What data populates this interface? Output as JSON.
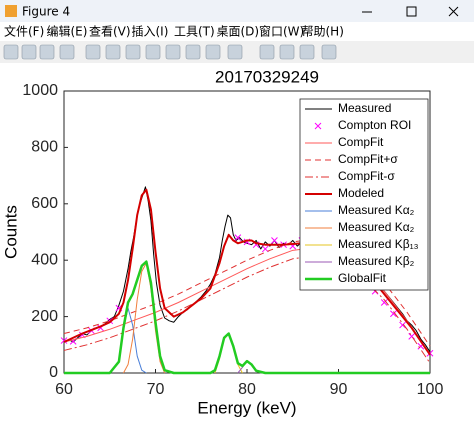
{
  "window_title": "Figure 4",
  "menu": [
    "文件(F)",
    "编辑(E)",
    "查看(V)",
    "插入(I)",
    "工具(T)",
    "桌面(D)",
    "窗口(W)",
    "帮助(H)"
  ],
  "chart_data": {
    "type": "line",
    "title": "20170329249",
    "x_label": "Energy (keV)",
    "y_label": "Counts",
    "xlim": [
      60,
      100
    ],
    "xticks": [
      60,
      70,
      80,
      90,
      100
    ],
    "ylim": [
      0,
      1000
    ],
    "yticks": [
      0,
      200,
      400,
      600,
      800,
      1000
    ],
    "legend": "upper right",
    "series": [
      {
        "name": "Measured",
        "color": "#000000",
        "style": "line",
        "width": 1,
        "x": [
          60,
          60.5,
          61,
          61.5,
          62,
          62.5,
          63,
          63.5,
          64,
          64.5,
          65,
          65.5,
          66,
          66.5,
          67,
          67.3,
          67.6,
          68,
          68.3,
          68.6,
          68.9,
          69.2,
          69.5,
          69.8,
          70.1,
          70.5,
          71,
          71.5,
          72,
          72.5,
          73,
          73.5,
          74,
          74.5,
          75,
          75.5,
          76,
          76.5,
          77,
          77.3,
          77.6,
          77.9,
          78.2,
          78.5,
          78.8,
          79.2,
          79.6,
          80,
          80.5,
          81,
          81.5,
          82,
          82.5,
          83,
          83.5,
          84,
          84.5,
          85,
          85.5,
          86,
          86.5,
          87,
          87.5,
          88,
          88.5,
          89,
          89.5,
          90,
          90.5,
          91,
          91.5,
          92,
          92.5,
          93,
          93.5,
          94,
          94.5,
          95,
          95.5,
          96,
          96.5,
          97,
          97.5,
          98,
          98.5,
          99,
          99.5,
          100
        ],
        "values": [
          112,
          118,
          110,
          125,
          140,
          135,
          150,
          160,
          165,
          175,
          190,
          200,
          240,
          290,
          370,
          430,
          480,
          560,
          600,
          630,
          660,
          610,
          540,
          420,
          320,
          240,
          195,
          185,
          180,
          200,
          215,
          225,
          240,
          255,
          270,
          290,
          315,
          350,
          410,
          470,
          520,
          560,
          550,
          490,
          470,
          480,
          465,
          460,
          455,
          470,
          440,
          465,
          450,
          470,
          445,
          460,
          455,
          470,
          450,
          465,
          445,
          470,
          455,
          460,
          440,
          450,
          430,
          420,
          430,
          400,
          410,
          380,
          390,
          360,
          345,
          320,
          310,
          290,
          270,
          250,
          230,
          210,
          185,
          170,
          150,
          120,
          100,
          75
        ]
      },
      {
        "name": "Compton ROI",
        "color": "#ff00ff",
        "style": "markers",
        "x": [
          60,
          61,
          62,
          63,
          64,
          65,
          66,
          79,
          80,
          81,
          82,
          83,
          84,
          85,
          86,
          87,
          88,
          89,
          90,
          91,
          92,
          93,
          94,
          95,
          96,
          97,
          98,
          99,
          100
        ],
        "values": [
          115,
          112,
          135,
          150,
          160,
          185,
          230,
          480,
          465,
          455,
          440,
          470,
          455,
          450,
          470,
          455,
          440,
          420,
          400,
          380,
          350,
          320,
          290,
          250,
          210,
          170,
          130,
          95,
          70
        ]
      },
      {
        "name": "CompFit",
        "color": "#ff5a5a",
        "style": "line",
        "width": 1,
        "x": [
          60,
          62.5,
          65,
          67.5,
          70,
          72.5,
          75,
          77.5,
          80,
          82.5,
          85,
          87.5,
          90,
          92.5,
          95,
          97.5,
          100
        ],
        "values": [
          110,
          130,
          155,
          185,
          215,
          250,
          290,
          330,
          370,
          405,
          435,
          445,
          420,
          370,
          290,
          185,
          65
        ]
      },
      {
        "name": "CompFit+σ",
        "color": "#e03030",
        "style": "line",
        "width": 1,
        "dash": "dashed",
        "x": [
          60,
          62.5,
          65,
          67.5,
          70,
          72.5,
          75,
          77.5,
          80,
          82.5,
          85,
          87.5,
          90,
          92.5,
          95,
          97.5,
          100
        ],
        "values": [
          140,
          160,
          185,
          215,
          245,
          280,
          320,
          360,
          400,
          435,
          465,
          475,
          450,
          400,
          320,
          215,
          95
        ]
      },
      {
        "name": "CompFit-σ",
        "color": "#e03030",
        "style": "line",
        "width": 1,
        "dash": "dashdot",
        "x": [
          60,
          62.5,
          65,
          67.5,
          70,
          72.5,
          75,
          77.5,
          80,
          82.5,
          85,
          87.5,
          90,
          92.5,
          95,
          97.5,
          100
        ],
        "values": [
          80,
          100,
          125,
          155,
          185,
          220,
          260,
          300,
          340,
          375,
          405,
          415,
          390,
          340,
          260,
          155,
          35
        ]
      },
      {
        "name": "Modeled",
        "color": "#d40000",
        "style": "line",
        "width": 2,
        "x": [
          60,
          62,
          64,
          65,
          66,
          66.5,
          67,
          67.5,
          68,
          68.5,
          69,
          69.5,
          70,
          70.5,
          71,
          72,
          73,
          74,
          75,
          76,
          77,
          77.5,
          78,
          78.5,
          79,
          80,
          80.5,
          81,
          82,
          84,
          86,
          88,
          90,
          92,
          94,
          96,
          98,
          100
        ],
        "values": [
          110,
          140,
          165,
          180,
          210,
          250,
          330,
          440,
          560,
          630,
          650,
          580,
          430,
          300,
          230,
          200,
          215,
          240,
          265,
          300,
          390,
          450,
          490,
          470,
          460,
          470,
          470,
          460,
          455,
          455,
          460,
          450,
          420,
          380,
          320,
          240,
          160,
          65
        ]
      },
      {
        "name": "Measured Kα₂",
        "color": "#4a7fd8",
        "style": "line",
        "width": 1,
        "x": [
          65,
          66,
          66.5,
          67,
          67.5,
          68,
          68.5,
          69
        ],
        "values": [
          0,
          40,
          160,
          230,
          170,
          60,
          10,
          0
        ]
      },
      {
        "name": "Measured Kα₂",
        "color": "#f07f3c",
        "style": "line",
        "width": 1,
        "x": [
          66.5,
          67,
          67.5,
          68,
          68.5,
          69,
          69.5,
          70,
          70.5,
          71
        ],
        "values": [
          0,
          30,
          120,
          260,
          360,
          390,
          300,
          150,
          40,
          0
        ]
      },
      {
        "name": "Measured Kβ₁₃",
        "color": "#e6c420",
        "style": "line",
        "width": 1,
        "x": [
          76.5,
          77,
          77.5,
          78,
          78.5,
          79,
          79.5
        ],
        "values": [
          0,
          50,
          120,
          140,
          90,
          30,
          0
        ]
      },
      {
        "name": "Measured Kβ₂",
        "color": "#9b59b6",
        "style": "line",
        "width": 1,
        "x": [
          79,
          79.5,
          80,
          80.5,
          81,
          81.5
        ],
        "values": [
          0,
          20,
          42,
          30,
          8,
          0
        ]
      },
      {
        "name": "GlobalFit",
        "color": "#22cc22",
        "style": "line",
        "width": 2.5,
        "x": [
          60,
          65,
          66,
          66.5,
          67,
          67.5,
          68,
          68.5,
          69,
          69.5,
          70,
          70.5,
          71,
          72,
          76,
          76.5,
          77,
          77.5,
          78,
          78.5,
          79,
          79.5,
          80,
          80.5,
          81,
          82,
          100
        ],
        "values": [
          0,
          0,
          40,
          160,
          250,
          280,
          330,
          380,
          395,
          320,
          180,
          60,
          10,
          0,
          0,
          10,
          60,
          125,
          140,
          95,
          35,
          25,
          42,
          30,
          8,
          0,
          0
        ]
      }
    ]
  }
}
